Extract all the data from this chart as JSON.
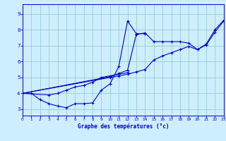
{
  "xlabel": "Graphe des températures (°c)",
  "bg_color": "#cceeff",
  "line_color": "#0000cc",
  "grid_color": "#99cccc",
  "xlim": [
    0,
    23
  ],
  "ylim": [
    2.6,
    9.6
  ],
  "xticks": [
    0,
    1,
    2,
    3,
    4,
    5,
    6,
    7,
    8,
    9,
    10,
    11,
    12,
    13,
    14,
    15,
    16,
    17,
    18,
    19,
    20,
    21,
    22,
    23
  ],
  "yticks": [
    3,
    4,
    5,
    6,
    7,
    8,
    9
  ],
  "series": [
    {
      "x": [
        0,
        1,
        2,
        3,
        4,
        5,
        6,
        7,
        8,
        9,
        10,
        11,
        12,
        13,
        14
      ],
      "y": [
        4.0,
        4.0,
        3.6,
        3.35,
        3.2,
        3.1,
        3.35,
        3.35,
        3.4,
        4.2,
        4.6,
        5.7,
        8.55,
        7.75,
        7.75
      ]
    },
    {
      "x": [
        0,
        3,
        4,
        5,
        6,
        7,
        8,
        9,
        10,
        11,
        12
      ],
      "y": [
        4.0,
        3.9,
        4.0,
        4.2,
        4.4,
        4.5,
        4.7,
        5.0,
        5.1,
        5.2,
        5.3
      ]
    },
    {
      "x": [
        0,
        10,
        11,
        12,
        13,
        14,
        15,
        16,
        17,
        18,
        19,
        20,
        21,
        22,
        23
      ],
      "y": [
        4.0,
        5.05,
        5.25,
        5.45,
        7.7,
        7.8,
        7.25,
        7.25,
        7.25,
        7.25,
        7.15,
        6.75,
        7.1,
        8.0,
        8.6
      ]
    },
    {
      "x": [
        0,
        10,
        11,
        12,
        13,
        14,
        15,
        16,
        17,
        18,
        19,
        20,
        21,
        22,
        23
      ],
      "y": [
        4.0,
        5.0,
        5.1,
        5.2,
        5.35,
        5.5,
        6.1,
        6.35,
        6.55,
        6.75,
        6.95,
        6.75,
        7.05,
        7.85,
        8.55
      ]
    }
  ]
}
